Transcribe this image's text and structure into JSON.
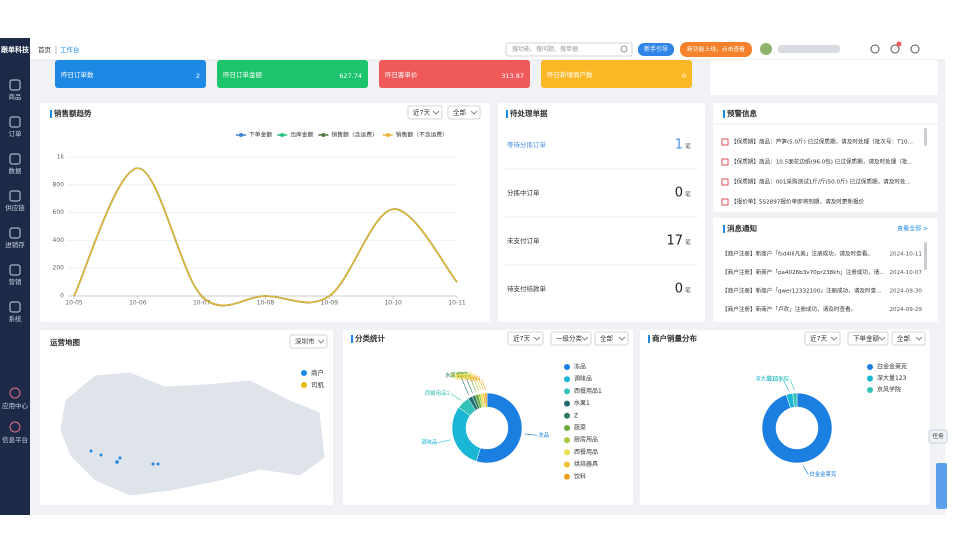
{
  "sidebar": {
    "logo": "跟单科技",
    "items": [
      "商品",
      "订单",
      "数据",
      "供应链",
      "进销存",
      "营销",
      "系统"
    ],
    "bottom_items": [
      "应用中心",
      "信息平台"
    ]
  },
  "header": {
    "breadcrumb": [
      "首页",
      "工作台"
    ],
    "search_placeholder": "搜功能、搜问题、搜单据",
    "guide_button": "新手引导",
    "promo": "新功能上线，点击查看"
  },
  "kpis": [
    {
      "label": "昨日订单数",
      "value": 2,
      "color": "#1e88e5"
    },
    {
      "label": "昨日订单金额",
      "value": 627.74,
      "color": "#1ec46b"
    },
    {
      "label": "昨日客单价",
      "value": 313.87,
      "color": "#f0595a"
    },
    {
      "label": "昨日新增商户数",
      "value": 0,
      "color": "#fbb824"
    }
  ],
  "pending": {
    "title": "待处理单据",
    "rows": [
      {
        "label": "等待分拣订单",
        "count": 1,
        "unit": "笔"
      },
      {
        "label": "分拣中订单",
        "count": 0,
        "unit": "笔"
      },
      {
        "label": "未支付订单",
        "count": 17,
        "unit": "笔"
      },
      {
        "label": "待支付结款单",
        "count": 0,
        "unit": "笔"
      }
    ]
  },
  "alerts": {
    "title": "预警信息",
    "items": [
      "【保质期】商品：芦笋(5.0斤) 已过保质期，请及时处理（批次号：T10...",
      "【保质期】商品：10.5面花边纸(96.0包) 已过保质期，请及时处理（批...",
      "【保质期】商品：001采购测试1斤/斤(50.0斤) 已过保质期，请及时处...",
      "【报价单】5S2897报价单即将到期，请及时更新报价"
    ]
  },
  "messages": {
    "title": "消息通知",
    "view_all": "查看全部 >",
    "items": [
      {
        "text": "【商户注册】新商户「fsd4lll凡美」注册成功，请及时查看。",
        "date": "2024-10-11"
      },
      {
        "text": "【商户注册】新商户「pa4026b3v70pr238kh」注册成功，请...",
        "date": "2024-10-07"
      },
      {
        "text": "【商户注册】新商户「qwer12332100」注册成功，请及时查...",
        "date": "2024-09-30"
      },
      {
        "text": "【商户注册】新商户「卢欢」注册成功，请及时查看。",
        "date": "2024-09-29"
      }
    ]
  },
  "map": {
    "title": "运营地图",
    "city": "深圳市",
    "legend": [
      {
        "name": "商户",
        "color": "#1e88e5"
      },
      {
        "name": "司机",
        "color": "#e6b800"
      }
    ]
  },
  "task_button": "任务",
  "chart_data": [
    {
      "type": "line",
      "title": "销售额趋势",
      "filters": [
        "近7天",
        "全部"
      ],
      "categories": [
        "10-05",
        "10-06",
        "10-07",
        "10-08",
        "10-09",
        "10-10",
        "10-11"
      ],
      "series": [
        {
          "name": "下单金额",
          "color": "#3b82d6",
          "values": [
            0,
            920,
            0,
            0,
            0,
            625,
            100
          ]
        },
        {
          "name": "出库金额",
          "color": "#27c07a",
          "values": [
            0,
            920,
            0,
            0,
            0,
            625,
            100
          ]
        },
        {
          "name": "销售额（含运费）",
          "color": "#4b7a3a",
          "values": [
            0,
            920,
            0,
            0,
            0,
            625,
            100
          ]
        },
        {
          "name": "销售额（不含运费）",
          "color": "#e6b53a",
          "values": [
            0,
            920,
            0,
            0,
            0,
            625,
            100
          ]
        }
      ],
      "ylim": [
        0,
        1000
      ],
      "yticks": [
        0,
        200,
        400,
        600,
        800,
        {
          "value": 1000,
          "label": "1k"
        }
      ],
      "grid": true,
      "smooth": true
    },
    {
      "type": "pie",
      "title": "分类统计",
      "filters": [
        "近7天",
        "一级分类",
        "全部"
      ],
      "donut": true,
      "categories": [
        "冻品",
        "调味品",
        "西餐用品1",
        "水果1",
        "Z",
        "蔬菜",
        "厨房用品",
        "西餐用品",
        "烘焙器具",
        "饮料"
      ],
      "values": [
        55,
        30,
        6,
        2,
        1.5,
        1.5,
        1,
        1,
        1,
        1
      ],
      "colors": [
        "#1a7fe0",
        "#19b6d6",
        "#35c2b8",
        "#1f6e6e",
        "#2e7d5a",
        "#6aaa3a",
        "#a4c93a",
        "#e8e04a",
        "#f2c230",
        "#f0a020"
      ]
    },
    {
      "type": "pie",
      "title": "商户销量分布",
      "filters": [
        "近7天",
        "下单金额",
        "全部"
      ],
      "donut": true,
      "categories": [
        "白金金莱克",
        "深大量123",
        "京风学院"
      ],
      "values": [
        95,
        3,
        2
      ],
      "colors": [
        "#1a7fe0",
        "#19b6d6",
        "#35c2b8"
      ]
    }
  ]
}
